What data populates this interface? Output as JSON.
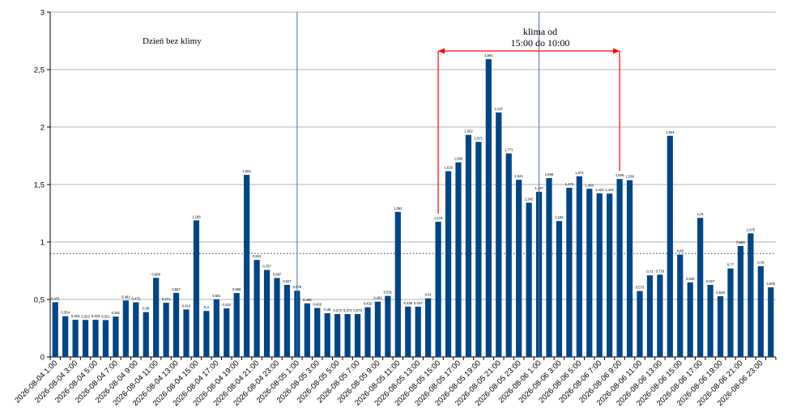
{
  "chart_data": {
    "type": "bar",
    "title": "",
    "xlabel": "",
    "ylabel": "",
    "ylim": [
      0,
      3
    ],
    "y_ticks": [
      "0",
      "0,5",
      "1",
      "1,5",
      "2",
      "2,5",
      "3"
    ],
    "grid": true,
    "bar_color": "#004586",
    "reference_line": {
      "y": 0.9,
      "style": "dotted",
      "color": "#333333"
    },
    "time_markers": [
      {
        "x_category": "2026-08-05 1:00",
        "color": "#4a6fa5"
      },
      {
        "x_category": "2026-08-06 1:00",
        "color": "#4a6fa5"
      }
    ],
    "annotations": {
      "no_ac_label": "Dzień bez klimy",
      "ac_label_line1": "klima od",
      "ac_label_line2": "15:00 do 10:00",
      "ac_bracket_color": "#ff0000",
      "ac_bracket_from_category": "2026-08-05 15:00",
      "ac_bracket_to_category": "2026-08-06 9:00"
    },
    "categories": [
      "2026-08-04 1:00",
      "2026-08-04 2:00",
      "2026-08-04 3:00",
      "2026-08-04 4:00",
      "2026-08-04 5:00",
      "2026-08-04 6:00",
      "2026-08-04 7:00",
      "2026-08-04 8:00",
      "2026-08-04 9:00",
      "2026-08-04 10:00",
      "2026-08-04 11:00",
      "2026-08-04 12:00",
      "2026-08-04 13:00",
      "2026-08-04 14:00",
      "2026-08-04 15:00",
      "2026-08-04 16:00",
      "2026-08-04 17:00",
      "2026-08-04 18:00",
      "2026-08-04 19:00",
      "2026-08-04 20:00",
      "2026-08-04 21:00",
      "2026-08-04 22:00",
      "2026-08-04 23:00",
      "2026-08-05 0:00",
      "2026-08-05 1:00",
      "2026-08-05 2:00",
      "2026-08-05 3:00",
      "2026-08-05 4:00",
      "2026-08-05 5:00",
      "2026-08-05 6:00",
      "2026-08-05 7:00",
      "2026-08-05 8:00",
      "2026-08-05 9:00",
      "2026-08-05 10:00",
      "2026-08-05 11:00",
      "2026-08-05 12:00",
      "2026-08-05 13:00",
      "2026-08-05 14:00",
      "2026-08-05 15:00",
      "2026-08-05 16:00",
      "2026-08-05 17:00",
      "2026-08-05 18:00",
      "2026-08-05 19:00",
      "2026-08-05 20:00",
      "2026-08-05 21:00",
      "2026-08-05 22:00",
      "2026-08-05 23:00",
      "2026-08-06 0:00",
      "2026-08-06 1:00",
      "2026-08-06 2:00",
      "2026-08-06 3:00",
      "2026-08-06 4:00",
      "2026-08-06 5:00",
      "2026-08-06 6:00",
      "2026-08-06 7:00",
      "2026-08-06 8:00",
      "2026-08-06 9:00",
      "2026-08-06 10:00",
      "2026-08-06 11:00",
      "2026-08-06 12:00",
      "2026-08-06 13:00",
      "2026-08-06 14:00",
      "2026-08-06 15:00",
      "2026-08-06 16:00",
      "2026-08-06 17:00",
      "2026-08-06 18:00",
      "2026-08-06 19:00",
      "2026-08-06 20:00",
      "2026-08-06 21:00",
      "2026-08-06 22:00",
      "2026-08-06 23:00",
      "2026-08-07 0:00"
    ],
    "values": [
      0.476,
      0.354,
      0.323,
      0.322,
      0.323,
      0.321,
      0.351,
      0.491,
      0.475,
      0.39,
      0.688,
      0.471,
      0.557,
      0.413,
      1.188,
      0.4,
      0.501,
      0.422,
      0.556,
      1.584,
      0.844,
      0.757,
      0.687,
      0.627,
      0.576,
      0.466,
      0.426,
      0.38,
      0.373,
      0.373,
      0.373,
      0.432,
      0.481,
      0.531,
      1.262,
      0.438,
      0.437,
      0.51,
      1.176,
      1.616,
      1.693,
      1.932,
      1.871,
      2.591,
      2.127,
      1.771,
      1.541,
      1.342,
      1.437,
      1.556,
      1.182,
      1.472,
      1.572,
      1.463,
      1.423,
      1.421,
      1.548,
      1.538,
      0.573,
      0.71,
      0.716,
      1.924,
      0.89,
      0.649,
      1.21,
      0.627,
      0.528,
      0.77,
      0.965,
      1.075,
      0.79,
      0.606
    ],
    "data_labels": [
      "0,476",
      "0,354",
      "0,323",
      "0,322",
      "0,323",
      "0,321",
      "0,351",
      "0,491",
      "0,475",
      "0,39",
      "0,688",
      "0,471",
      "0,557",
      "0,413",
      "1,188",
      "0,4",
      "0,501",
      "0,422",
      "0,556",
      "1,584",
      "0,844",
      "0,757",
      "0,687",
      "0,627",
      "0,576",
      "0,466",
      "0,426",
      "0,38",
      "0,373",
      "0,373",
      "0,373",
      "0,432",
      "0,481",
      "0,531",
      "1,262",
      "0,438",
      "0,437",
      "0,51",
      "1,176",
      "1,616",
      "1,693",
      "1,932",
      "1,871",
      "2,591",
      "2,127",
      "1,771",
      "1,541",
      "1,342",
      "1,437",
      "1,556",
      "1,182",
      "1,472",
      "1,572",
      "1,463",
      "1,423",
      "1,421",
      "1,548",
      "1,538",
      "0,573",
      "0,71",
      "0,716",
      "1,924",
      "0,89",
      "0,649",
      "1,21",
      "0,627",
      "0,528",
      "0,77",
      "0,965",
      "1,075",
      "0,79",
      "0,606"
    ],
    "x_tick_labels": [
      "2026-08-04 1:00",
      "2026-08-04 3:00",
      "2026-08-04 5:00",
      "2026-08-04 7:00",
      "2026-08-04 9:00",
      "2026-08-04 11:00",
      "2026-08-04 13:00",
      "2026-08-04 15:00",
      "2026-08-04 17:00",
      "2026-08-04 19:00",
      "2026-08-04 21:00",
      "2026-08-04 23:00",
      "2026-08-05 1:00",
      "2026-08-05 3:00",
      "2026-08-05 5:00",
      "2026-08-05 7:00",
      "2026-08-05 9:00",
      "2026-08-05 11:00",
      "2026-08-05 13:00",
      "2026-08-05 15:00",
      "2026-08-05 17:00",
      "2026-08-05 19:00",
      "2026-08-05 21:00",
      "2026-08-05 23:00",
      "2026-08-06 1:00",
      "2026-08-06 3:00",
      "2026-08-06 5:00",
      "2026-08-06 7:00",
      "2026-08-06 9:00",
      "2026-08-06 11:00",
      "2026-08-06 13:00",
      "2026-08-06 15:00",
      "2026-08-06 17:00",
      "2026-08-06 19:00",
      "2026-08-06 21:00",
      "2026-08-06 23:00"
    ]
  }
}
